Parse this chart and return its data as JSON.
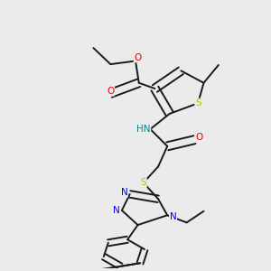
{
  "background_color": "#ebebeb",
  "figsize": [
    3.0,
    3.0
  ],
  "dpi": 100,
  "colors": {
    "C": "#1a1a1a",
    "N": "#0000ee",
    "O": "#ee0000",
    "S": "#bbbb00",
    "H": "#008888",
    "bond": "#1a1a1a"
  },
  "font_size": 7.5
}
